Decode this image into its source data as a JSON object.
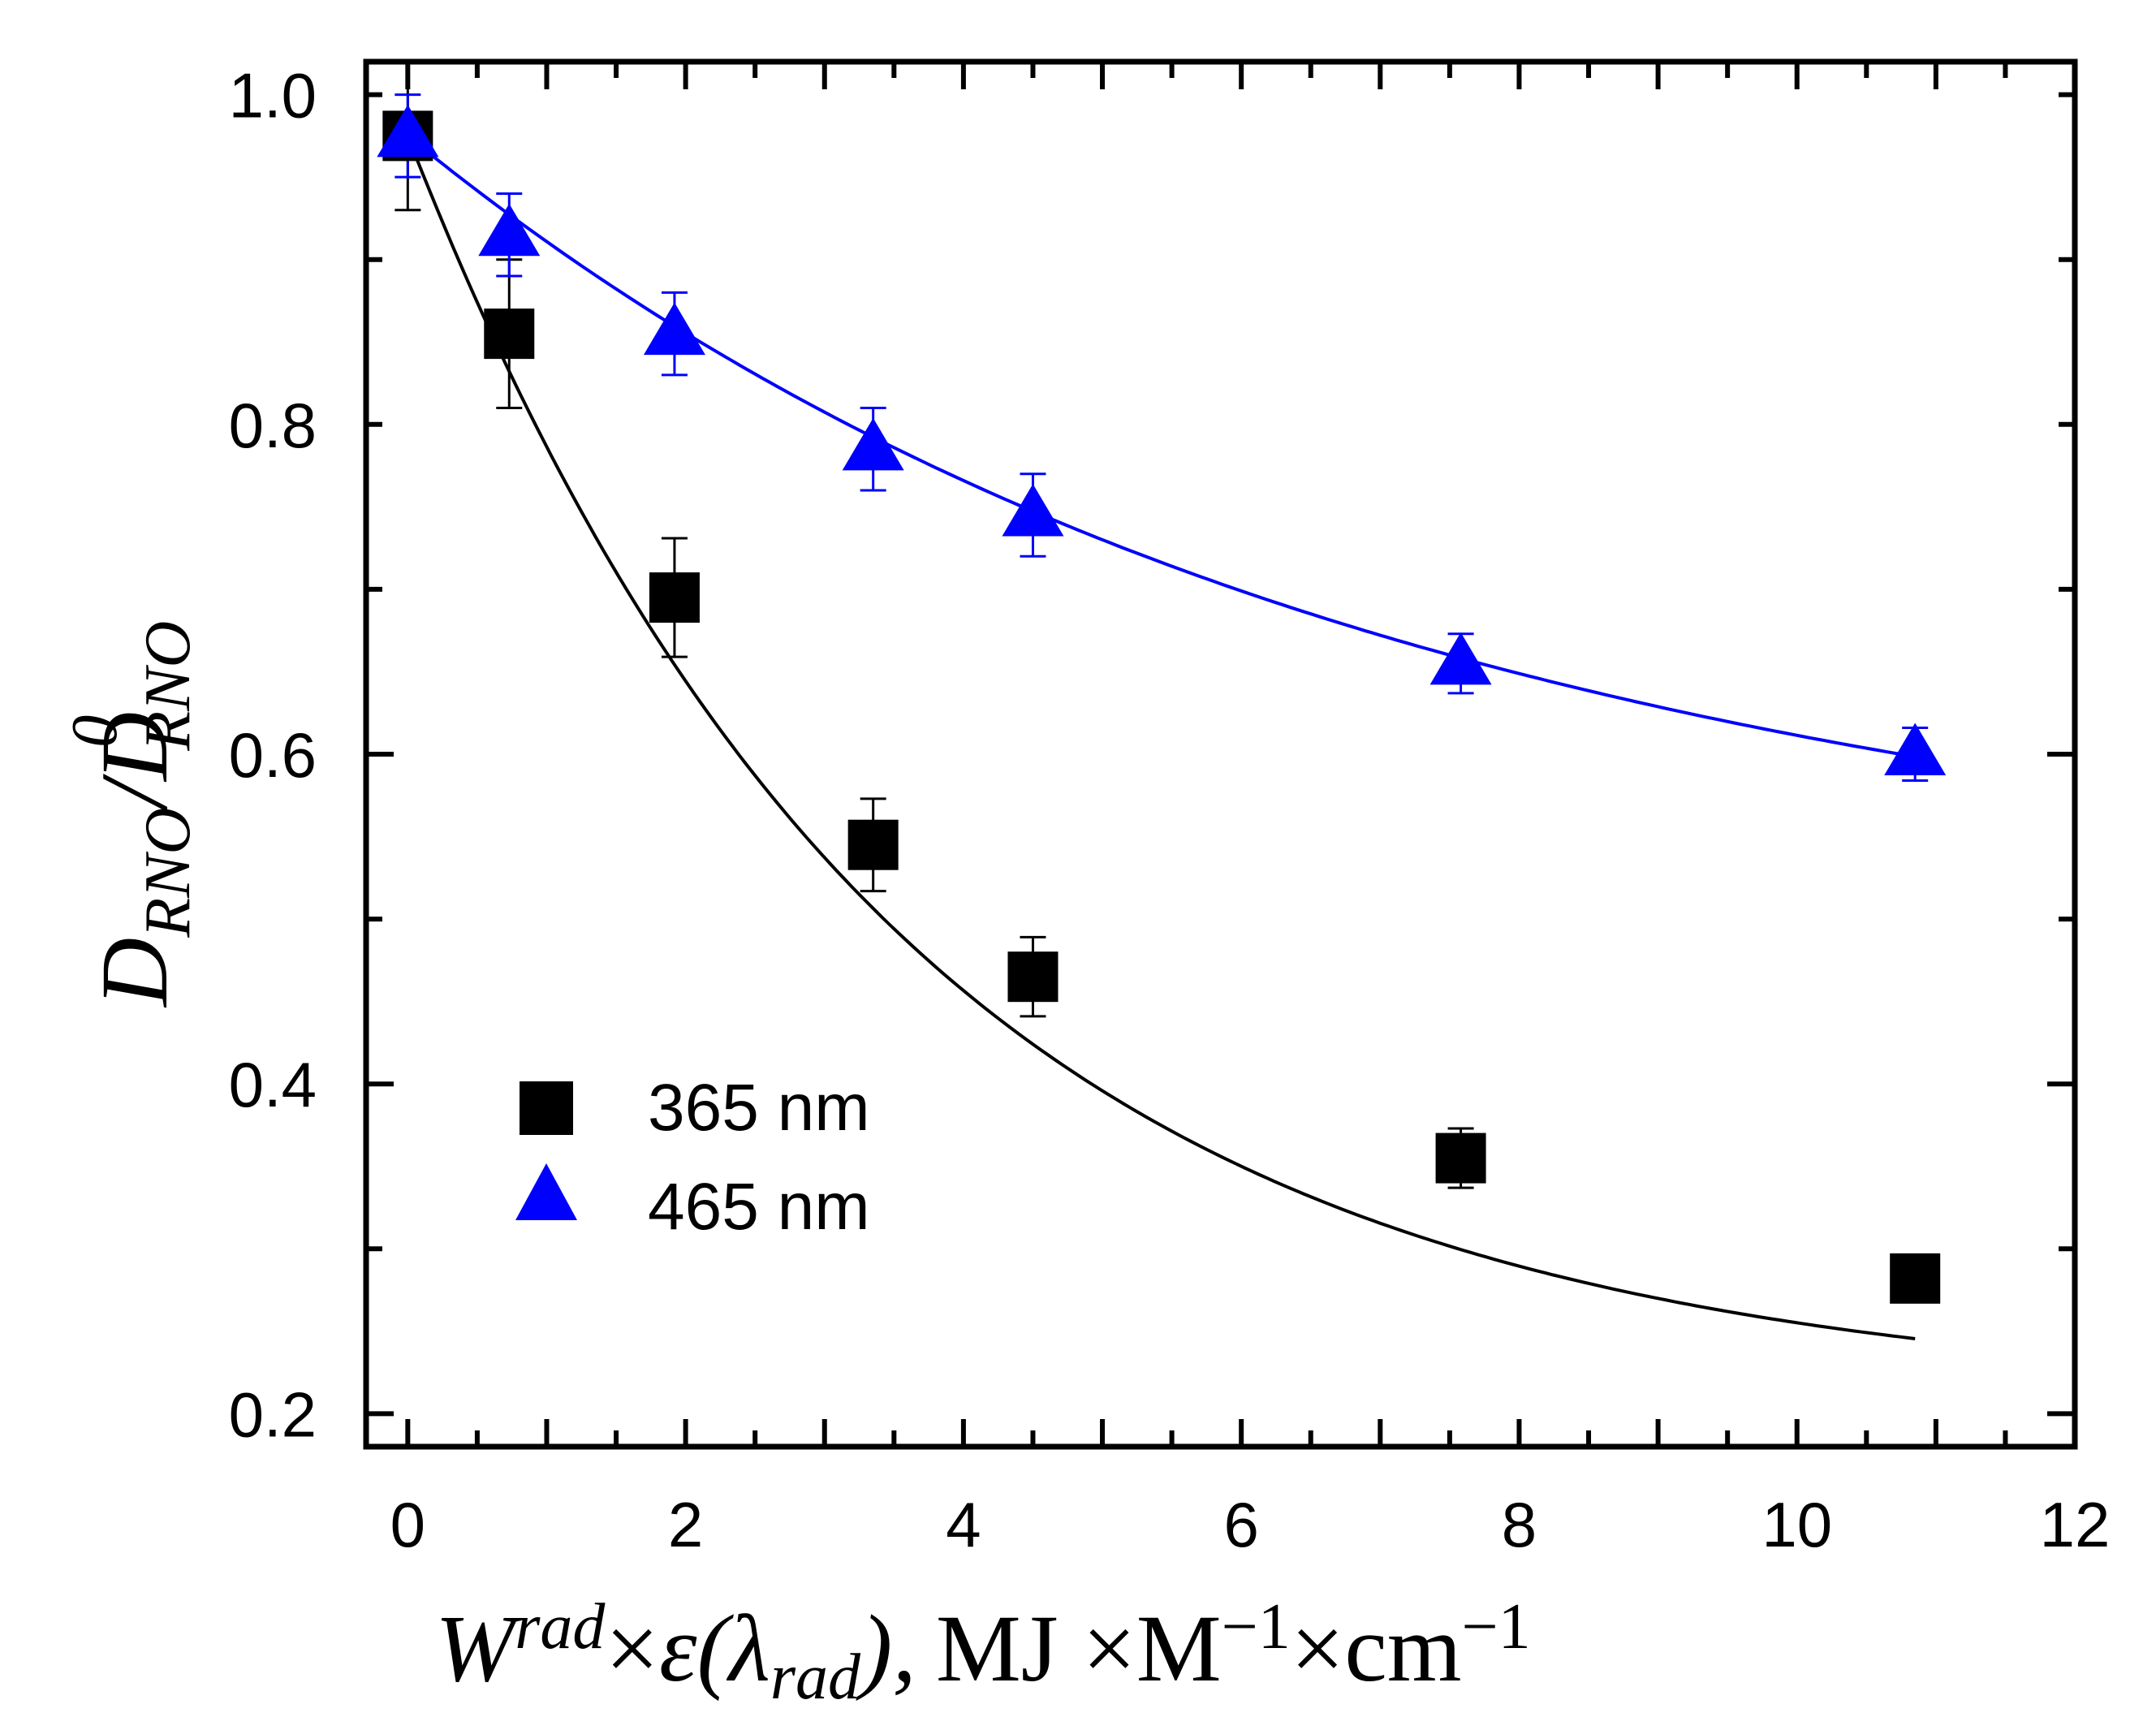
{
  "chart_data": {
    "type": "scatter",
    "title": "",
    "xlabel": {
      "w": "W",
      "w_sup": "rad",
      "times1": "×",
      "eps": "ε(λ",
      "lam_sub": "rad",
      "close": "),",
      "units1": "MJ ×M",
      "m_sup": "−1",
      "units2": "×cm",
      "cm_sup": "−1"
    },
    "ylabel": {
      "d1": "D",
      "d1_sub": "RNO",
      "slash": "/",
      "d2": "D",
      "d2_sup": "0",
      "d2_sub": "RNO"
    },
    "xlim": [
      -0.3,
      12
    ],
    "ylim": [
      0.18,
      1.02
    ],
    "x_ticks": [
      "0",
      "2",
      "4",
      "6",
      "8",
      "10",
      "12"
    ],
    "y_ticks": [
      "0.2",
      "0.4",
      "0.6",
      "0.8",
      "1.0"
    ],
    "series": [
      {
        "name": "365 nm",
        "marker": "square",
        "color": "#000000",
        "x": [
          0,
          0.73,
          1.92,
          3.35,
          4.5,
          7.58,
          10.85
        ],
        "y": [
          0.975,
          0.855,
          0.695,
          0.545,
          0.465,
          0.355,
          0.282
        ],
        "err": [
          0.045,
          0.045,
          0.036,
          0.028,
          0.024,
          0.018,
          0.006
        ],
        "fit_y0": 0.21,
        "fit_a": 0.765,
        "fit_k": 0.283
      },
      {
        "name": "465 nm",
        "marker": "triangle",
        "color": "#0000ff",
        "x": [
          0,
          0.73,
          1.92,
          3.35,
          4.5,
          7.58,
          10.85
        ],
        "y": [
          0.975,
          0.915,
          0.855,
          0.785,
          0.745,
          0.655,
          0.6
        ],
        "err": [
          0.025,
          0.025,
          0.025,
          0.025,
          0.025,
          0.018,
          0.016
        ],
        "fit_y0": 0.5,
        "fit_a": 0.475,
        "fit_k": 0.145
      }
    ],
    "legend": "lower-left"
  },
  "colors": {
    "axis": "#000000",
    "series_365": "#000000",
    "series_465": "#0000ff"
  }
}
